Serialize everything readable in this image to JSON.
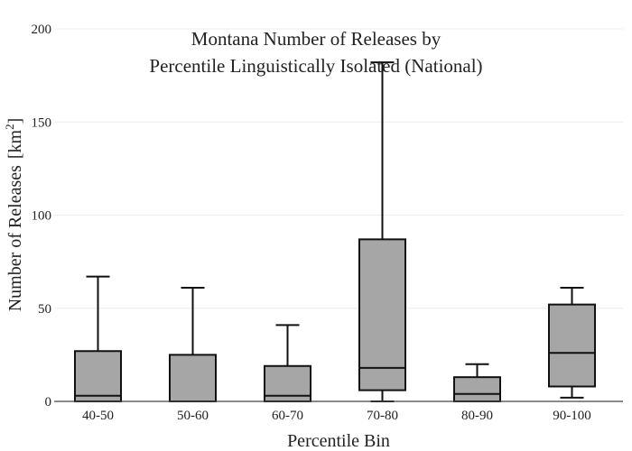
{
  "chart_data": {
    "type": "box",
    "title": "Montana Number of Releases by",
    "subtitle": "Percentile Linguistically Isolated (National)",
    "xlabel": "Percentile Bin",
    "ylabel": "Number of Releases",
    "ylabel_unit": "[km",
    "ylabel_unit_sup": "2",
    "ylabel_unit_close": "]",
    "ylim": [
      0,
      200
    ],
    "yticks": [
      0,
      50,
      100,
      150,
      200
    ],
    "grid": true,
    "box_color": "#a6a6a6",
    "categories": [
      "40-50",
      "50-60",
      "60-70",
      "70-80",
      "80-90",
      "90-100"
    ],
    "boxes": [
      {
        "min": 0,
        "q1": 0,
        "median": 3,
        "q3": 27,
        "max": 67
      },
      {
        "min": 0,
        "q1": 0,
        "median": 0,
        "q3": 25,
        "max": 61
      },
      {
        "min": 0,
        "q1": 0,
        "median": 3,
        "q3": 19,
        "max": 41
      },
      {
        "min": 0,
        "q1": 6,
        "median": 18,
        "q3": 87,
        "max": 182
      },
      {
        "min": 0,
        "q1": 0,
        "median": 4,
        "q3": 13,
        "max": 20
      },
      {
        "min": 2,
        "q1": 8,
        "median": 26,
        "q3": 52,
        "max": 61
      }
    ]
  }
}
